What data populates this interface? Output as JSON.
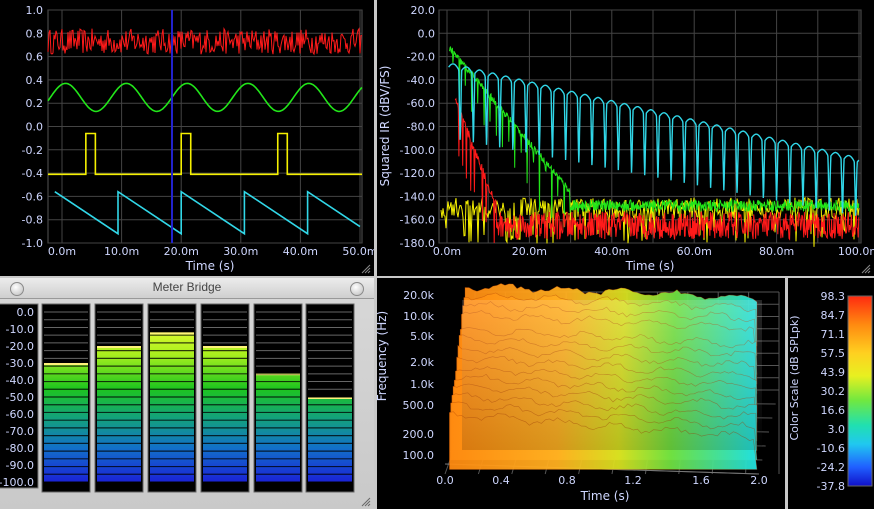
{
  "oscilloscope": {
    "y_ticks": [
      "1.0",
      "0.8",
      "0.6",
      "0.4",
      "0.2",
      "0.0",
      "-0.2",
      "-0.4",
      "-0.6",
      "-0.8",
      "-1.0"
    ],
    "x_ticks": [
      "0.0m",
      "10.0m",
      "20.0m",
      "30.0m",
      "40.0m",
      "50.0m"
    ],
    "xlabel": "Time (s)",
    "colors": {
      "noise": "#ff1a1a",
      "sine": "#22e51a",
      "pulse": "#f5f000",
      "saw": "#31d7e8",
      "cursor": "#2222cc"
    }
  },
  "impulse": {
    "ylabel": "Squared IR (dBV/FS)",
    "y_ticks": [
      "20.0",
      "0.0",
      "-20.0",
      "-40.0",
      "-60.0",
      "-80.0",
      "-100.0",
      "-120.0",
      "-140.0",
      "-160.0",
      "-180.0"
    ],
    "x_ticks": [
      "0.0m",
      "20.0m",
      "40.0m",
      "60.0m",
      "80.0m",
      "100.0m"
    ],
    "xlabel": "Time (s)"
  },
  "meter_bridge": {
    "title": "Meter Bridge",
    "scale": [
      "0.0",
      "-10.0",
      "-20.0",
      "-30.0",
      "-40.0",
      "-50.0",
      "-60.0",
      "-70.0",
      "-80.0",
      "-90.0",
      "-100.0"
    ],
    "levels": [
      -30,
      -20,
      -12,
      -20,
      -36,
      -50
    ]
  },
  "waterfall": {
    "ylabel": "Frequency (Hz)",
    "y_ticks": [
      "20.0k",
      "10.0k",
      "5.0k",
      "2.0k",
      "1.0k",
      "500.0",
      "200.0",
      "100.0"
    ],
    "x_ticks": [
      "0.0",
      "0.4",
      "0.8",
      "1.2",
      "1.6",
      "2.0"
    ],
    "xlabel": "Time (s)"
  },
  "color_scale": {
    "label": "Color Scale (dB SPLpk)",
    "ticks": [
      "98.3",
      "84.7",
      "71.1",
      "57.5",
      "43.9",
      "30.2",
      "16.6",
      "3.0",
      "-10.6",
      "-24.2",
      "-37.8"
    ]
  }
}
